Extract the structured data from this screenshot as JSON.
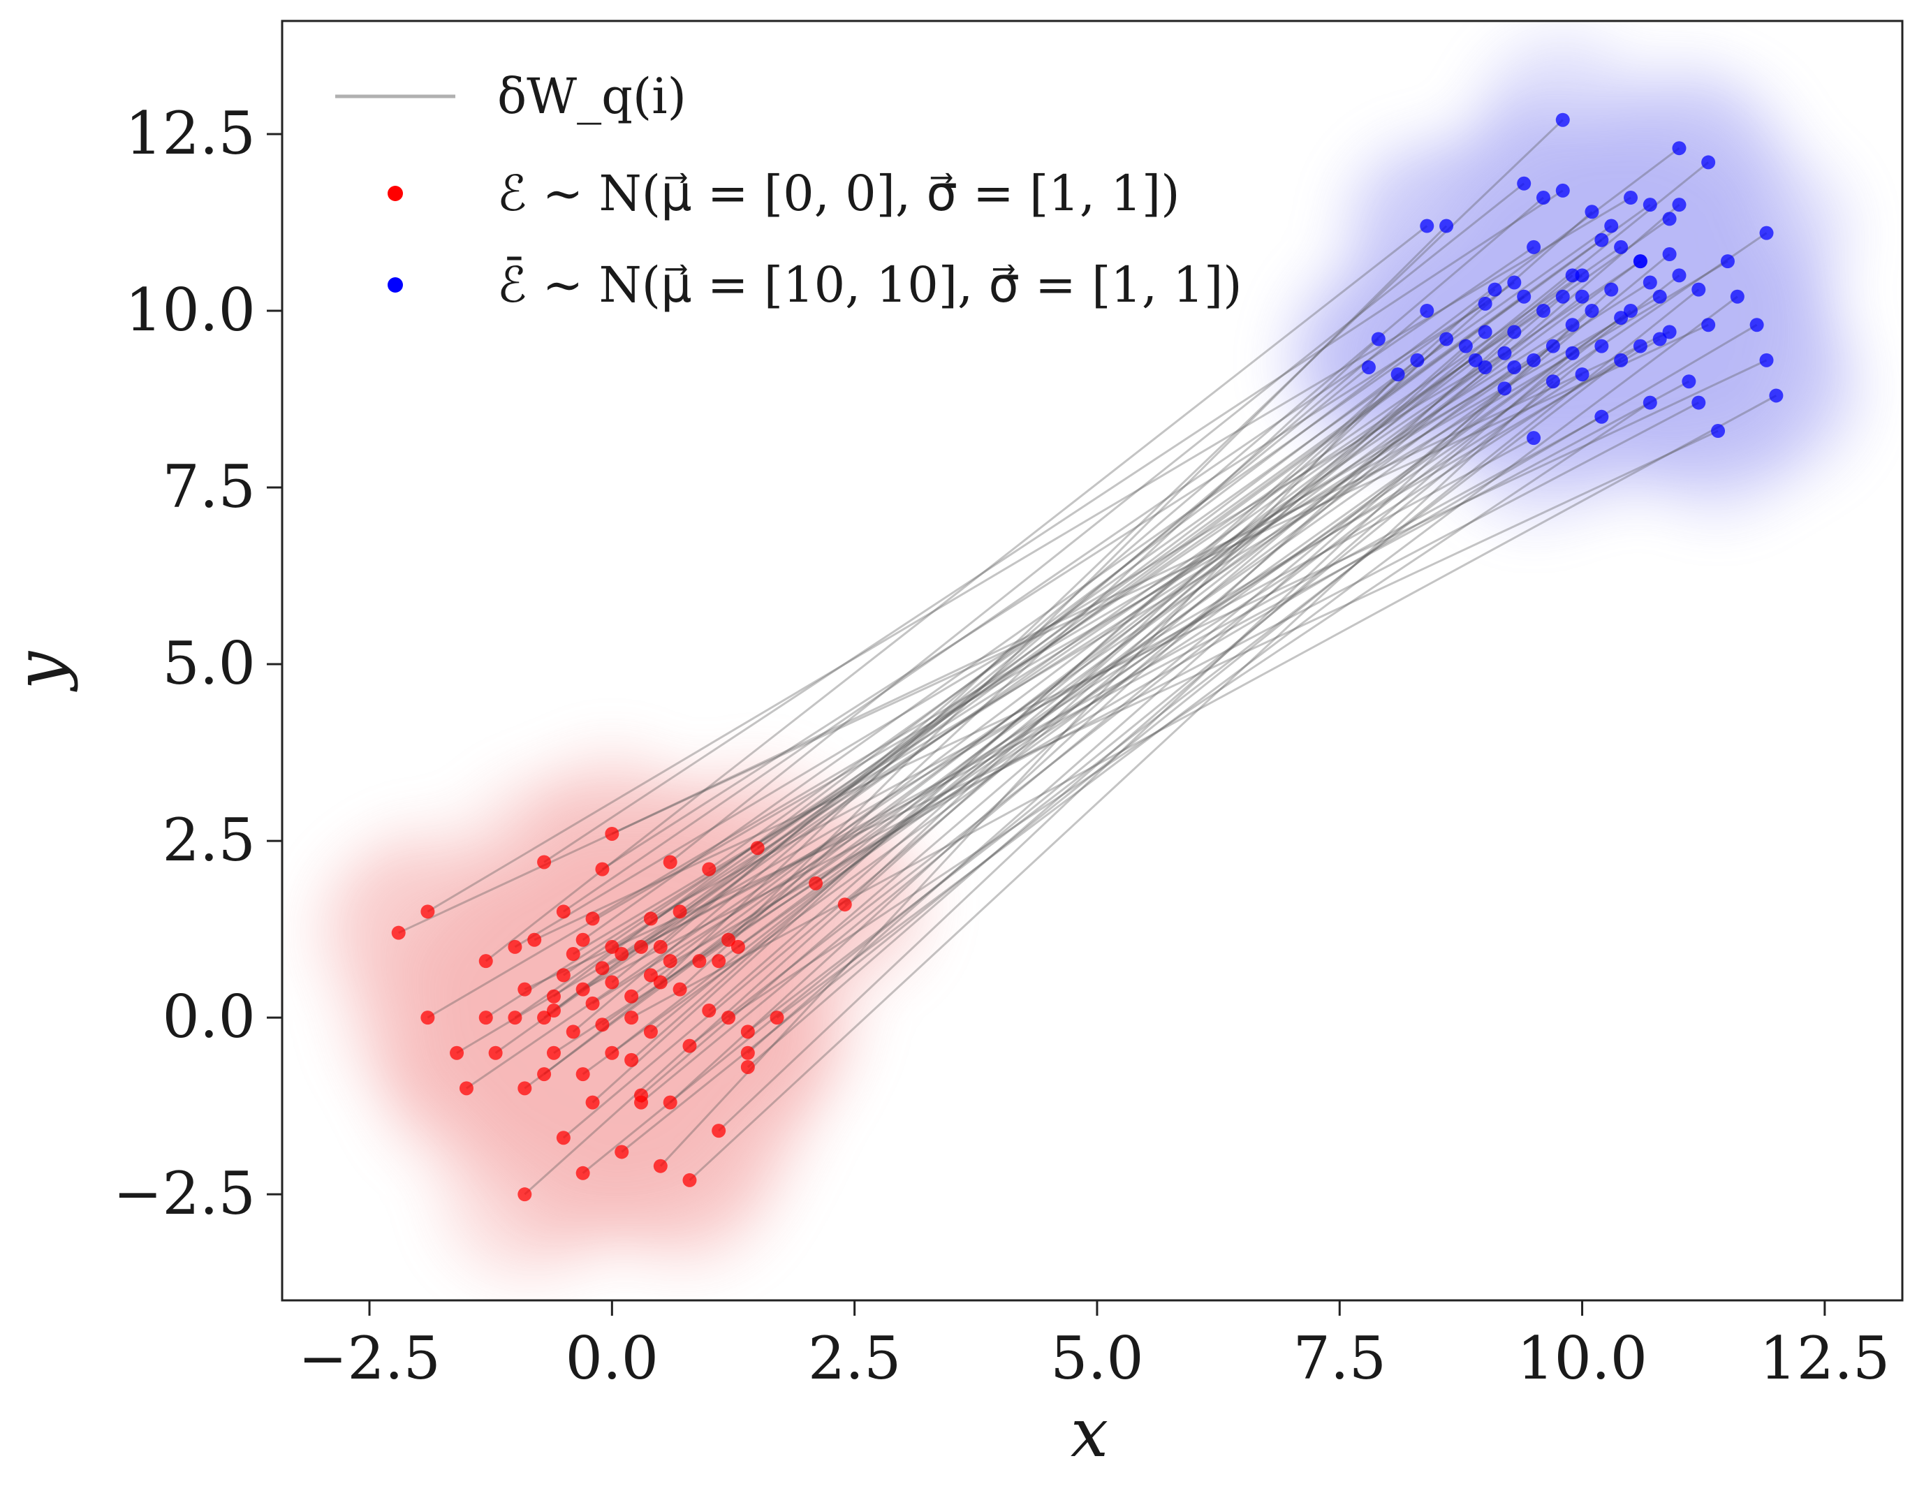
{
  "chart_data": {
    "type": "scatter",
    "title": "",
    "xlabel": "x",
    "ylabel": "y",
    "xlim": [
      -3.4,
      13.3
    ],
    "ylim": [
      -4.0,
      14.1
    ],
    "xticks": [
      -2.5,
      0.0,
      2.5,
      5.0,
      7.5,
      10.0,
      12.5
    ],
    "yticks": [
      -2.5,
      0.0,
      2.5,
      5.0,
      7.5,
      10.0,
      12.5
    ],
    "xtick_labels": [
      "−2.5",
      "0.0",
      "2.5",
      "5.0",
      "7.5",
      "10.0",
      "12.5"
    ],
    "ytick_labels": [
      "−2.5",
      "0.0",
      "2.5",
      "5.0",
      "7.5",
      "10.0",
      "12.5"
    ],
    "grid": false,
    "legend_position": "top-left",
    "legend": [
      {
        "label": "δW_q(i)",
        "kind": "line",
        "color": "#b0b0b0"
      },
      {
        "label": "ℰ ∼ N(μ⃗ = [0, 0], σ⃗ = [1, 1])",
        "kind": "marker",
        "color": "#ff0000"
      },
      {
        "label": "ℰ̄ ∼ N(μ⃗ = [10, 10], σ⃗ = [1, 1])",
        "kind": "marker",
        "color": "#0000ff"
      }
    ],
    "colors": {
      "red": "#ff0000",
      "blue": "#0000ff",
      "line": "#555555",
      "red_kde": "#f08080",
      "blue_kde": "#8080f0"
    },
    "series": [
      {
        "name": "E",
        "color": "#ff0000",
        "points": [
          [
            -2.2,
            1.2
          ],
          [
            -1.9,
            1.5
          ],
          [
            -1.9,
            0.0
          ],
          [
            -1.6,
            -0.5
          ],
          [
            -1.5,
            -1.0
          ],
          [
            -1.3,
            0.8
          ],
          [
            -1.3,
            0.0
          ],
          [
            -1.2,
            -0.5
          ],
          [
            -1.0,
            1.0
          ],
          [
            -1.0,
            0.0
          ],
          [
            -0.9,
            0.4
          ],
          [
            -0.9,
            -1.0
          ],
          [
            -0.8,
            1.1
          ],
          [
            -0.7,
            2.2
          ],
          [
            -0.7,
            0.0
          ],
          [
            -0.7,
            -0.8
          ],
          [
            -0.6,
            0.3
          ],
          [
            -0.6,
            -0.5
          ],
          [
            -0.5,
            1.5
          ],
          [
            -0.5,
            0.6
          ],
          [
            -0.5,
            -1.7
          ],
          [
            -0.4,
            0.9
          ],
          [
            -0.4,
            -0.2
          ],
          [
            -0.3,
            1.1
          ],
          [
            -0.3,
            0.4
          ],
          [
            -0.3,
            -0.8
          ],
          [
            -0.2,
            1.4
          ],
          [
            -0.2,
            0.2
          ],
          [
            -0.2,
            -1.2
          ],
          [
            -0.1,
            2.1
          ],
          [
            -0.1,
            0.7
          ],
          [
            -0.1,
            -0.1
          ],
          [
            0.0,
            2.6
          ],
          [
            0.0,
            1.0
          ],
          [
            0.0,
            0.5
          ],
          [
            0.0,
            -0.5
          ],
          [
            0.1,
            0.9
          ],
          [
            0.1,
            -1.9
          ],
          [
            0.2,
            0.3
          ],
          [
            0.2,
            -0.6
          ],
          [
            0.3,
            1.0
          ],
          [
            0.3,
            -1.1
          ],
          [
            0.4,
            1.4
          ],
          [
            0.4,
            0.6
          ],
          [
            0.4,
            -0.2
          ],
          [
            0.5,
            1.0
          ],
          [
            0.5,
            0.5
          ],
          [
            0.5,
            -2.1
          ],
          [
            0.6,
            2.2
          ],
          [
            0.6,
            0.8
          ],
          [
            0.6,
            -1.2
          ],
          [
            0.7,
            1.5
          ],
          [
            0.7,
            0.4
          ],
          [
            0.8,
            -0.4
          ],
          [
            0.8,
            -2.3
          ],
          [
            0.9,
            0.8
          ],
          [
            1.0,
            2.1
          ],
          [
            1.0,
            0.1
          ],
          [
            1.1,
            0.8
          ],
          [
            1.1,
            -1.6
          ],
          [
            1.2,
            1.1
          ],
          [
            1.2,
            0.0
          ],
          [
            1.3,
            1.0
          ],
          [
            1.4,
            -0.5
          ],
          [
            1.4,
            -0.7
          ],
          [
            1.5,
            2.4
          ],
          [
            1.7,
            0.0
          ],
          [
            2.1,
            1.9
          ],
          [
            2.4,
            1.6
          ],
          [
            -0.9,
            -2.5
          ],
          [
            -0.3,
            -2.2
          ],
          [
            -0.6,
            0.1
          ],
          [
            0.2,
            0.0
          ],
          [
            0.3,
            -1.2
          ],
          [
            1.4,
            -0.2
          ]
        ]
      },
      {
        "name": "E_bar",
        "color": "#0000ff",
        "points": [
          [
            7.8,
            9.2
          ],
          [
            7.9,
            9.6
          ],
          [
            8.1,
            9.1
          ],
          [
            8.3,
            9.3
          ],
          [
            8.4,
            11.2
          ],
          [
            8.6,
            11.2
          ],
          [
            8.6,
            9.6
          ],
          [
            8.8,
            9.5
          ],
          [
            8.9,
            9.3
          ],
          [
            9.0,
            10.1
          ],
          [
            9.0,
            9.7
          ],
          [
            9.1,
            10.3
          ],
          [
            9.2,
            9.4
          ],
          [
            9.2,
            8.9
          ],
          [
            9.3,
            10.4
          ],
          [
            9.3,
            9.2
          ],
          [
            9.4,
            11.8
          ],
          [
            9.4,
            10.2
          ],
          [
            9.5,
            9.3
          ],
          [
            9.5,
            8.2
          ],
          [
            9.6,
            11.6
          ],
          [
            9.6,
            10.0
          ],
          [
            9.7,
            9.5
          ],
          [
            9.8,
            12.7
          ],
          [
            9.8,
            11.7
          ],
          [
            9.8,
            10.2
          ],
          [
            9.9,
            10.5
          ],
          [
            9.9,
            9.8
          ],
          [
            10.0,
            10.2
          ],
          [
            10.0,
            9.1
          ],
          [
            10.1,
            11.4
          ],
          [
            10.1,
            10.0
          ],
          [
            10.2,
            9.5
          ],
          [
            10.2,
            8.5
          ],
          [
            10.3,
            11.2
          ],
          [
            10.3,
            10.3
          ],
          [
            10.4,
            10.9
          ],
          [
            10.4,
            9.3
          ],
          [
            10.5,
            11.6
          ],
          [
            10.5,
            10.0
          ],
          [
            10.6,
            10.7
          ],
          [
            10.6,
            9.5
          ],
          [
            10.7,
            11.5
          ],
          [
            10.7,
            10.4
          ],
          [
            10.7,
            8.7
          ],
          [
            10.8,
            9.6
          ],
          [
            10.9,
            11.3
          ],
          [
            10.9,
            9.7
          ],
          [
            11.0,
            12.3
          ],
          [
            11.0,
            10.5
          ],
          [
            11.1,
            9.0
          ],
          [
            11.2,
            10.3
          ],
          [
            11.2,
            8.7
          ],
          [
            11.3,
            12.1
          ],
          [
            11.3,
            9.8
          ],
          [
            11.4,
            8.3
          ],
          [
            11.5,
            10.7
          ],
          [
            11.6,
            10.2
          ],
          [
            11.8,
            9.8
          ],
          [
            11.9,
            9.3
          ],
          [
            11.9,
            11.1
          ],
          [
            12.0,
            8.8
          ],
          [
            8.4,
            10.0
          ],
          [
            9.0,
            9.2
          ],
          [
            10.0,
            10.5
          ],
          [
            10.6,
            10.7
          ],
          [
            9.7,
            9.0
          ],
          [
            10.8,
            10.2
          ],
          [
            9.5,
            10.9
          ],
          [
            10.2,
            11.0
          ],
          [
            11.0,
            11.5
          ],
          [
            9.3,
            9.7
          ],
          [
            10.4,
            9.9
          ],
          [
            10.9,
            10.8
          ],
          [
            9.9,
            9.4
          ]
        ]
      }
    ]
  }
}
